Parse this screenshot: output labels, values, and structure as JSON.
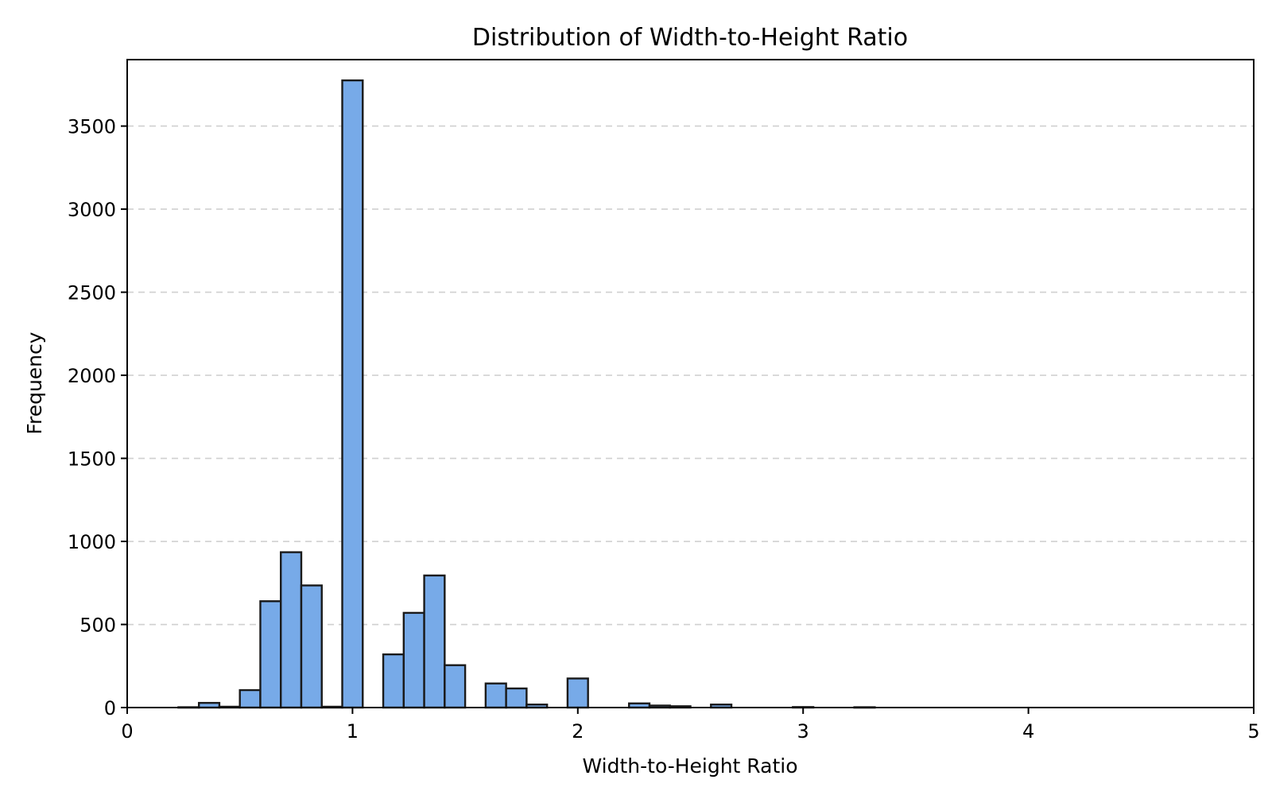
{
  "chart_data": {
    "type": "bar",
    "title": "Distribution of Width-to-Height Ratio",
    "xlabel": "Width-to-Height Ratio",
    "ylabel": "Frequency",
    "xlim": [
      0,
      5
    ],
    "ylim": [
      0,
      3900
    ],
    "xticks": [
      0,
      1,
      2,
      3,
      4,
      5
    ],
    "yticks": [
      0,
      500,
      1000,
      1500,
      2000,
      2500,
      3000,
      3500
    ],
    "grid": "horizontal dashed",
    "bar_color": "#77AAE8",
    "edge_color": "#1a1a1a",
    "bin_width": 0.0909,
    "bins": [
      {
        "x0": 0.2273,
        "value": 2
      },
      {
        "x0": 0.3182,
        "value": 28
      },
      {
        "x0": 0.4091,
        "value": 5
      },
      {
        "x0": 0.5,
        "value": 105
      },
      {
        "x0": 0.5909,
        "value": 640
      },
      {
        "x0": 0.6818,
        "value": 935
      },
      {
        "x0": 0.7727,
        "value": 735
      },
      {
        "x0": 0.8636,
        "value": 5
      },
      {
        "x0": 0.9545,
        "value": 3775
      },
      {
        "x0": 1.1364,
        "value": 320
      },
      {
        "x0": 1.2273,
        "value": 570
      },
      {
        "x0": 1.3182,
        "value": 795
      },
      {
        "x0": 1.4091,
        "value": 255
      },
      {
        "x0": 1.5909,
        "value": 145
      },
      {
        "x0": 1.6818,
        "value": 115
      },
      {
        "x0": 1.7727,
        "value": 18
      },
      {
        "x0": 1.9545,
        "value": 175
      },
      {
        "x0": 2.2273,
        "value": 25
      },
      {
        "x0": 2.3182,
        "value": 12
      },
      {
        "x0": 2.4091,
        "value": 8
      },
      {
        "x0": 2.5909,
        "value": 18
      },
      {
        "x0": 2.9545,
        "value": 3
      },
      {
        "x0": 3.2273,
        "value": 2
      }
    ]
  }
}
